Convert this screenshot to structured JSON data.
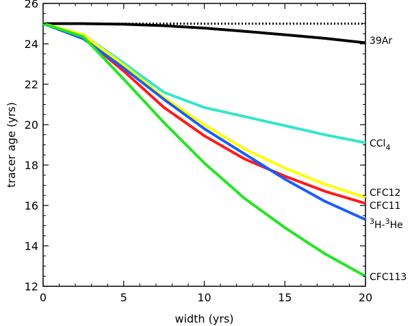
{
  "chart_data": {
    "type": "line",
    "xlabel": "width (yrs)",
    "ylabel": "tracer age (yrs)",
    "xlim": [
      0,
      20
    ],
    "ylim": [
      12,
      26
    ],
    "xticks": [
      0,
      5,
      10,
      15,
      20
    ],
    "yticks": [
      12,
      14,
      16,
      18,
      20,
      22,
      24,
      26
    ],
    "grid": false,
    "legend": "none (series labelled at right edge)",
    "x": [
      0,
      2.5,
      5,
      7.5,
      10,
      12.5,
      15,
      17.5,
      20
    ],
    "reference_line": {
      "y": 25.0,
      "style": "dotted",
      "color": "#000000"
    },
    "series": [
      {
        "name": "39Ar",
        "label_main": "39Ar",
        "label_sup": "",
        "label_mid": "",
        "label_sup2": "",
        "label_end": "",
        "label_sub": "",
        "color": "#000000",
        "values": [
          25.0,
          25.0,
          24.97,
          24.9,
          24.78,
          24.62,
          24.45,
          24.27,
          24.05
        ]
      },
      {
        "name": "CCl4",
        "label_main": "CCl",
        "label_sup": "",
        "label_mid": "",
        "label_sup2": "",
        "label_end": "",
        "label_sub": "4",
        "color": "#33e6cc",
        "values": [
          25.0,
          24.45,
          23.05,
          21.6,
          20.85,
          20.4,
          19.95,
          19.5,
          19.1
        ]
      },
      {
        "name": "CFC12",
        "label_main": "CFC12",
        "label_sup": "",
        "label_mid": "",
        "label_sup2": "",
        "label_end": "",
        "label_sub": "",
        "color": "#ffff00",
        "values": [
          25.0,
          24.45,
          22.95,
          21.35,
          20.0,
          18.8,
          17.85,
          17.05,
          16.4
        ]
      },
      {
        "name": "CFC11",
        "label_main": "CFC11",
        "label_sup": "",
        "label_mid": "",
        "label_sup2": "",
        "label_end": "",
        "label_sub": "",
        "color": "#ff1a1a",
        "values": [
          25.0,
          24.3,
          22.65,
          20.85,
          19.45,
          18.3,
          17.45,
          16.7,
          16.1
        ]
      },
      {
        "name": "3H-3He",
        "label_main": "",
        "label_sup": "3",
        "label_mid": "H-",
        "label_sup2": "3",
        "label_end": "He",
        "label_sub": "",
        "color": "#1a5cff",
        "values": [
          25.0,
          24.25,
          22.8,
          21.25,
          19.8,
          18.55,
          17.3,
          16.2,
          15.3
        ]
      },
      {
        "name": "CFC113",
        "label_main": "CFC113",
        "label_sup": "",
        "label_mid": "",
        "label_sup2": "",
        "label_end": "",
        "label_sub": "",
        "color": "#22e622",
        "values": [
          25.0,
          24.35,
          22.25,
          20.1,
          18.1,
          16.35,
          14.9,
          13.6,
          12.5
        ]
      }
    ]
  }
}
